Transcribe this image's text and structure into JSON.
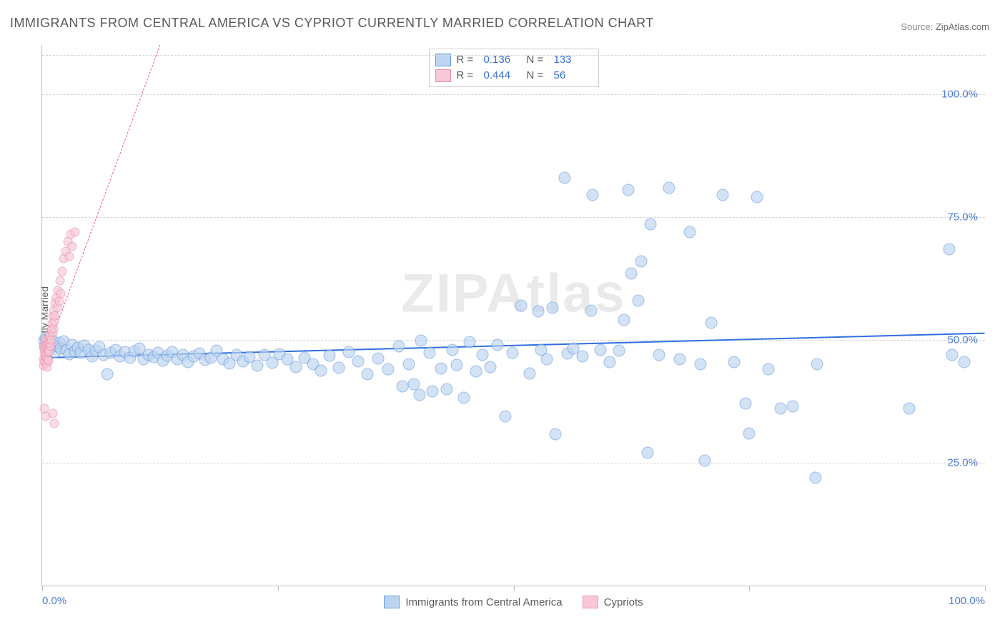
{
  "title": "IMMIGRANTS FROM CENTRAL AMERICA VS CYPRIOT CURRENTLY MARRIED CORRELATION CHART",
  "source_label": "Source:",
  "source_value": "ZipAtlas.com",
  "watermark": "ZIPAtlas",
  "chart": {
    "type": "scatter",
    "ylabel": "Currently Married",
    "xlim": [
      0,
      100
    ],
    "ylim": [
      0,
      110
    ],
    "x_ticks": [
      0,
      25,
      50,
      75,
      100
    ],
    "x_tick_labels_shown": [
      0,
      100
    ],
    "x_tick_label_fmt": {
      "0": "0.0%",
      "100": "100.0%"
    },
    "y_ticks": [
      25,
      50,
      75,
      100
    ],
    "y_grid": [
      25,
      50,
      75,
      100,
      108
    ],
    "y_tick_label_fmt": {
      "25": "25.0%",
      "50": "50.0%",
      "75": "75.0%",
      "100": "100.0%"
    },
    "background_color": "#ffffff",
    "grid_color": "#d3d3d3",
    "axis_color": "#bfbfbf",
    "tick_label_color": "#4f7dd1",
    "marker_radius_a": 8.5,
    "marker_radius_b": 6.5,
    "marker_border_width": 1.2,
    "title_fontsize": 18,
    "label_fontsize": 14,
    "tick_fontsize": 15,
    "stats_box": {
      "rows": [
        {
          "swatch_fill": "#bcd4f0",
          "swatch_border": "#6a9de0",
          "r_label": "R =",
          "r_value": "0.136",
          "n_label": "N =",
          "n_value": "133"
        },
        {
          "swatch_fill": "#f7c9d6",
          "swatch_border": "#e98fae",
          "r_label": "R =",
          "r_value": "0.444",
          "n_label": "N =",
          "n_value": "56"
        }
      ]
    },
    "bottom_legend": [
      {
        "swatch_fill": "#bcd4f0",
        "swatch_border": "#6a9de0",
        "label": "Immigrants from Central America"
      },
      {
        "swatch_fill": "#f7c9d6",
        "swatch_border": "#e98fae",
        "label": "Cypriots"
      }
    ],
    "series": [
      {
        "name": "Immigrants from Central America",
        "fill": "#bcd4f0",
        "fill_opacity": 0.65,
        "border": "#6a9de0",
        "trend": {
          "x1": 0,
          "y1": 46.5,
          "x2": 100,
          "y2": 51.5,
          "color": "#2f6fe0",
          "width": 2.5,
          "dash": "solid"
        },
        "points": [
          [
            0.2,
            49.8
          ],
          [
            0.3,
            48.6
          ],
          [
            0.4,
            50.4
          ],
          [
            0.5,
            49.1
          ],
          [
            0.6,
            47.8
          ],
          [
            0.8,
            48.9
          ],
          [
            1.0,
            50.2
          ],
          [
            1.2,
            49.0
          ],
          [
            1.4,
            47.5
          ],
          [
            1.6,
            48.7
          ],
          [
            1.8,
            49.4
          ],
          [
            2.0,
            48.2
          ],
          [
            2.3,
            49.7
          ],
          [
            2.6,
            48.0
          ],
          [
            2.9,
            47.1
          ],
          [
            3.2,
            48.9
          ],
          [
            3.5,
            47.6
          ],
          [
            3.8,
            48.4
          ],
          [
            4.1,
            47.3
          ],
          [
            4.5,
            48.8
          ],
          [
            4.9,
            47.9
          ],
          [
            5.3,
            46.6
          ],
          [
            5.7,
            47.8
          ],
          [
            6.1,
            48.5
          ],
          [
            6.5,
            46.9
          ],
          [
            6.9,
            43.0
          ],
          [
            7.3,
            47.4
          ],
          [
            7.8,
            48.0
          ],
          [
            8.3,
            46.7
          ],
          [
            8.8,
            47.5
          ],
          [
            9.3,
            46.3
          ],
          [
            9.8,
            47.7
          ],
          [
            10.3,
            48.2
          ],
          [
            10.8,
            46.0
          ],
          [
            11.3,
            47.0
          ],
          [
            11.8,
            46.5
          ],
          [
            12.3,
            47.3
          ],
          [
            12.8,
            45.8
          ],
          [
            13.3,
            46.8
          ],
          [
            13.8,
            47.5
          ],
          [
            14.3,
            46.1
          ],
          [
            14.9,
            47.0
          ],
          [
            15.5,
            45.5
          ],
          [
            16.1,
            46.6
          ],
          [
            16.7,
            47.2
          ],
          [
            17.3,
            45.9
          ],
          [
            17.9,
            46.4
          ],
          [
            18.5,
            47.8
          ],
          [
            19.2,
            46.0
          ],
          [
            19.9,
            45.2
          ],
          [
            20.6,
            47.0
          ],
          [
            21.3,
            45.7
          ],
          [
            22.0,
            46.5
          ],
          [
            22.8,
            44.8
          ],
          [
            23.6,
            46.9
          ],
          [
            24.4,
            45.3
          ],
          [
            25.2,
            47.1
          ],
          [
            26.0,
            46.0
          ],
          [
            26.9,
            44.5
          ],
          [
            27.8,
            46.3
          ],
          [
            28.7,
            45.0
          ],
          [
            29.6,
            43.7
          ],
          [
            30.5,
            46.8
          ],
          [
            31.5,
            44.3
          ],
          [
            32.5,
            47.5
          ],
          [
            33.5,
            45.6
          ],
          [
            34.5,
            43.0
          ],
          [
            35.6,
            46.2
          ],
          [
            36.7,
            44.0
          ],
          [
            37.8,
            48.7
          ],
          [
            38.2,
            40.5
          ],
          [
            38.9,
            45.1
          ],
          [
            39.4,
            41.0
          ],
          [
            40.0,
            38.8
          ],
          [
            40.2,
            49.8
          ],
          [
            41.1,
            47.3
          ],
          [
            41.4,
            39.5
          ],
          [
            42.3,
            44.2
          ],
          [
            42.9,
            40.0
          ],
          [
            43.5,
            48.0
          ],
          [
            44.0,
            44.9
          ],
          [
            44.7,
            38.2
          ],
          [
            45.3,
            49.5
          ],
          [
            46.0,
            43.6
          ],
          [
            46.7,
            47.0
          ],
          [
            47.5,
            44.4
          ],
          [
            48.3,
            48.9
          ],
          [
            49.1,
            34.5
          ],
          [
            49.9,
            47.4
          ],
          [
            50.8,
            57.0
          ],
          [
            51.7,
            43.1
          ],
          [
            52.6,
            55.8
          ],
          [
            52.9,
            48.0
          ],
          [
            53.5,
            46.0
          ],
          [
            54.1,
            56.5
          ],
          [
            54.4,
            30.8
          ],
          [
            55.4,
            83.0
          ],
          [
            55.7,
            47.2
          ],
          [
            56.3,
            48.3
          ],
          [
            57.3,
            46.7
          ],
          [
            58.2,
            56.0
          ],
          [
            58.4,
            79.5
          ],
          [
            59.2,
            48.0
          ],
          [
            60.2,
            45.5
          ],
          [
            61.2,
            47.8
          ],
          [
            61.7,
            54.0
          ],
          [
            62.2,
            80.5
          ],
          [
            62.5,
            63.5
          ],
          [
            63.2,
            58.0
          ],
          [
            63.5,
            66.0
          ],
          [
            64.2,
            27.0
          ],
          [
            64.5,
            73.5
          ],
          [
            65.4,
            47.0
          ],
          [
            66.5,
            81.0
          ],
          [
            67.6,
            46.0
          ],
          [
            68.7,
            72.0
          ],
          [
            69.8,
            45.0
          ],
          [
            70.3,
            25.5
          ],
          [
            71.0,
            53.5
          ],
          [
            72.2,
            79.5
          ],
          [
            73.4,
            45.5
          ],
          [
            74.6,
            37.0
          ],
          [
            75.0,
            31.0
          ],
          [
            75.8,
            79.0
          ],
          [
            77.0,
            44.0
          ],
          [
            78.3,
            36.0
          ],
          [
            79.6,
            36.5
          ],
          [
            82.0,
            22.0
          ],
          [
            82.2,
            45.0
          ],
          [
            92.0,
            36.0
          ],
          [
            96.2,
            68.5
          ],
          [
            96.5,
            47.0
          ],
          [
            97.8,
            45.5
          ]
        ]
      },
      {
        "name": "Cypriots",
        "fill": "#f7c9d6",
        "fill_opacity": 0.65,
        "border": "#e98fae",
        "trend": {
          "x1": 0,
          "y1": 45.0,
          "x2": 12.5,
          "y2": 110,
          "color": "#ea5a89",
          "width": 1.2,
          "dash": "dashed"
        },
        "points": [
          [
            0.15,
            44.8
          ],
          [
            0.18,
            46.0
          ],
          [
            0.2,
            47.5
          ],
          [
            0.22,
            48.8
          ],
          [
            0.25,
            45.5
          ],
          [
            0.28,
            49.6
          ],
          [
            0.3,
            46.7
          ],
          [
            0.32,
            48.0
          ],
          [
            0.35,
            50.2
          ],
          [
            0.38,
            47.0
          ],
          [
            0.4,
            49.0
          ],
          [
            0.42,
            45.2
          ],
          [
            0.45,
            48.4
          ],
          [
            0.48,
            46.3
          ],
          [
            0.5,
            47.8
          ],
          [
            0.52,
            49.8
          ],
          [
            0.55,
            44.5
          ],
          [
            0.58,
            48.9
          ],
          [
            0.6,
            46.0
          ],
          [
            0.62,
            47.3
          ],
          [
            0.65,
            49.2
          ],
          [
            0.68,
            45.8
          ],
          [
            0.7,
            48.1
          ],
          [
            0.73,
            50.5
          ],
          [
            0.76,
            47.6
          ],
          [
            0.8,
            49.4
          ],
          [
            0.85,
            51.0
          ],
          [
            0.9,
            48.7
          ],
          [
            0.95,
            52.0
          ],
          [
            1.0,
            50.0
          ],
          [
            1.05,
            53.4
          ],
          [
            1.1,
            51.5
          ],
          [
            1.15,
            54.8
          ],
          [
            1.2,
            52.3
          ],
          [
            1.25,
            56.0
          ],
          [
            1.3,
            53.7
          ],
          [
            1.35,
            57.5
          ],
          [
            1.4,
            55.0
          ],
          [
            1.5,
            58.5
          ],
          [
            1.6,
            56.5
          ],
          [
            1.7,
            60.0
          ],
          [
            1.8,
            57.8
          ],
          [
            1.9,
            62.0
          ],
          [
            2.0,
            59.5
          ],
          [
            2.15,
            64.0
          ],
          [
            2.3,
            66.5
          ],
          [
            2.5,
            68.0
          ],
          [
            2.7,
            70.0
          ],
          [
            2.85,
            67.0
          ],
          [
            3.0,
            71.5
          ],
          [
            3.2,
            69.0
          ],
          [
            3.5,
            72.0
          ],
          [
            0.2,
            36.0
          ],
          [
            0.35,
            34.5
          ],
          [
            1.1,
            35.0
          ],
          [
            1.3,
            33.0
          ]
        ]
      }
    ]
  }
}
